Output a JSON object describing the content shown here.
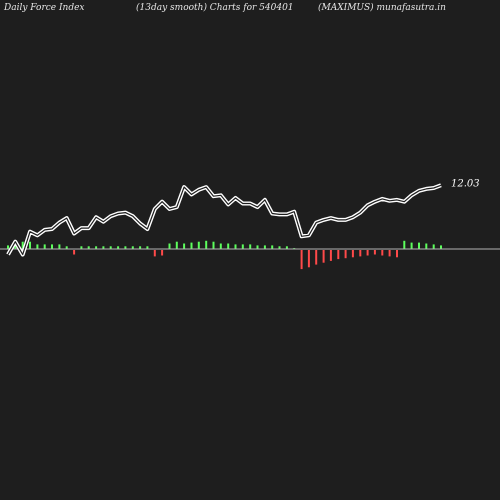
{
  "header": {
    "left": "Daily Force  Index",
    "center": "(13day smooth) Charts for 540401",
    "right": "(MAXIMUS) munafasutra.in"
  },
  "colors": {
    "background": "#1e1e1e",
    "line": "#ffffff",
    "zero_line": "#b4b4b4",
    "positive_bar": "#5cff5c",
    "negative_bar": "#ff4a4a"
  },
  "chart_data": {
    "type": "line",
    "last_value_label": "12.03",
    "series": [
      {
        "values": [
          -0.6,
          0.8,
          -0.6,
          1.9,
          1.5,
          2.1,
          2.2,
          2.9,
          3.4,
          1.7,
          2.3,
          2.3,
          3.5,
          3.0,
          3.6,
          3.9,
          4.0,
          3.6,
          2.8,
          2.2,
          4.4,
          5.2,
          4.4,
          4.6,
          6.8,
          6.0,
          6.5,
          6.8,
          5.8,
          5.9,
          4.9,
          5.6,
          5.0,
          5.0,
          4.6,
          5.4,
          3.9,
          3.8,
          3.8,
          4.1,
          1.4,
          1.5,
          2.9,
          3.2,
          3.4,
          3.2,
          3.2,
          3.5,
          4.0,
          4.8,
          5.2,
          5.5,
          5.3,
          5.4,
          5.2,
          5.9,
          6.4,
          6.6,
          6.7,
          7.0
        ]
      },
      {
        "values": [
          0.4,
          0.6,
          0.8,
          0.8,
          0.5,
          0.5,
          0.5,
          0.5,
          0.3,
          -0.5,
          0.3,
          0.3,
          0.3,
          0.3,
          0.3,
          0.3,
          0.3,
          0.3,
          0.3,
          0.3,
          -0.7,
          -0.6,
          0.6,
          0.8,
          0.6,
          0.7,
          0.8,
          0.9,
          0.8,
          0.6,
          0.6,
          0.5,
          0.5,
          0.5,
          0.4,
          0.4,
          0.4,
          0.3,
          0.3,
          0.1,
          -2.1,
          -1.9,
          -1.6,
          -1.4,
          -1.2,
          -1.0,
          -0.9,
          -0.8,
          -0.7,
          -0.6,
          -0.5,
          -0.6,
          -0.7,
          -0.8,
          0.9,
          0.7,
          0.7,
          0.6,
          0.5,
          0.4
        ]
      }
    ]
  }
}
